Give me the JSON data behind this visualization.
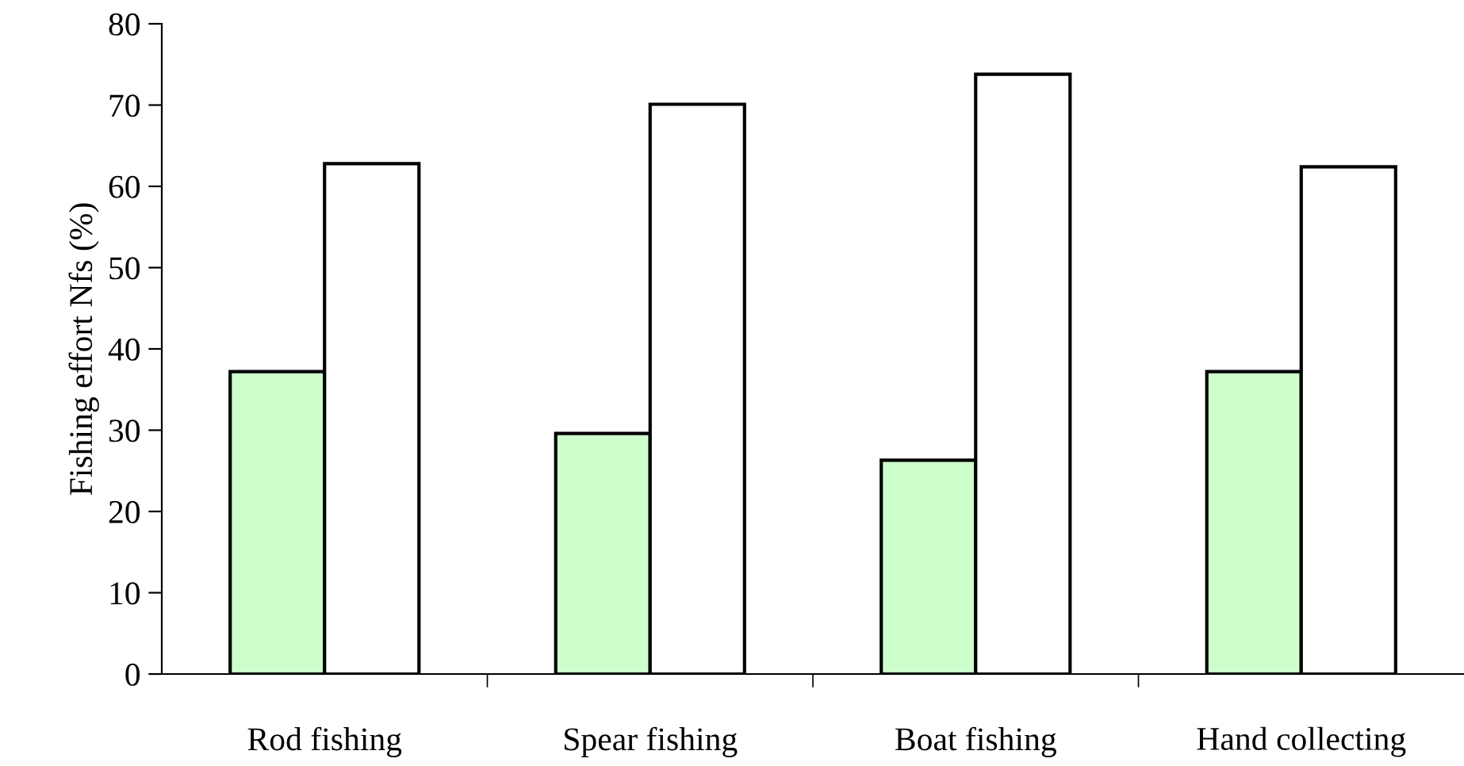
{
  "chart_data": {
    "type": "bar",
    "ylabel": "Fishing effort Nfs (%)",
    "categories": [
      "Rod fishing",
      "Spear fishing",
      "Boat fishing",
      "Hand collecting"
    ],
    "series": [
      {
        "color": "#ccffcc",
        "values": [
          37.2,
          29.6,
          26.3,
          37.2
        ]
      },
      {
        "color": "#ffffff",
        "values": [
          62.8,
          70.1,
          73.8,
          62.4
        ]
      }
    ],
    "ylim": [
      0,
      80
    ],
    "yticks": [
      0,
      10,
      20,
      30,
      40,
      50,
      60,
      70,
      80
    ],
    "grid": false
  }
}
